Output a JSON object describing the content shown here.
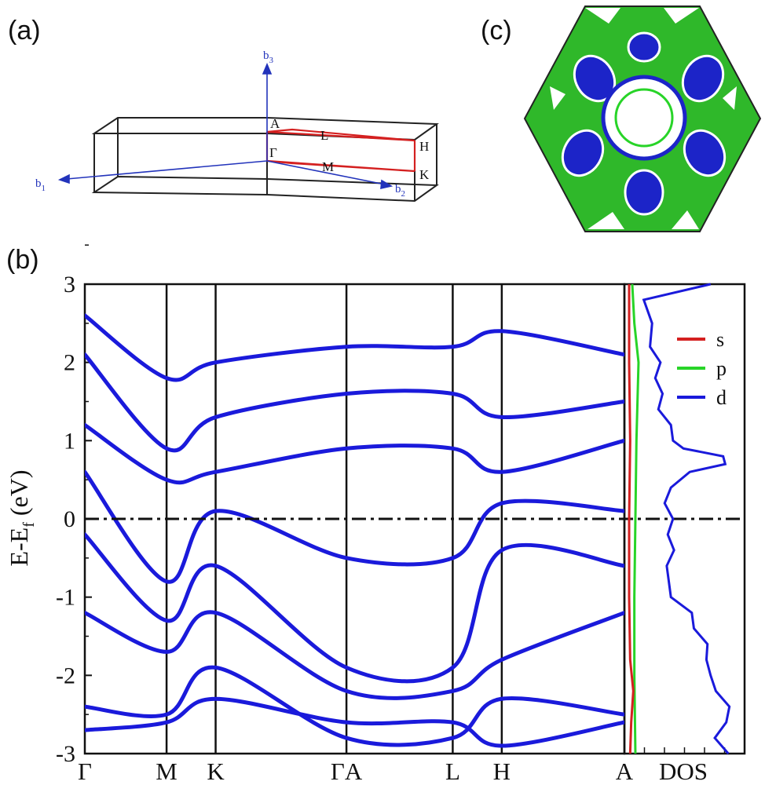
{
  "panels": {
    "a": "(a)",
    "b": "(b)",
    "c": "(c)"
  },
  "brillouin_zone": {
    "reciprocal_vectors": [
      "b",
      "b",
      "b"
    ],
    "reciprocal_subscripts": [
      "1",
      "2",
      "3"
    ],
    "points": [
      "A",
      "L",
      "H",
      "Γ",
      "M",
      "K"
    ]
  },
  "chart_data": {
    "type": "line",
    "ylabel_main": "E-E",
    "ylabel_sub": "f",
    "ylabel_unit": " (eV)",
    "ylim": [
      -3,
      3
    ],
    "yticks": [
      "-3",
      "-2",
      "-1",
      "0",
      "1",
      "2",
      "3"
    ],
    "ytick_values": [
      -3,
      -2,
      -1,
      0,
      1,
      2,
      3
    ],
    "fermi_level": 0,
    "kpath_labels": [
      "Γ",
      "M",
      "K",
      "ΓA",
      "L",
      "H",
      "A"
    ],
    "kpath_positions": [
      0,
      1,
      1.6,
      3.2,
      4.5,
      5.1,
      6.6
    ],
    "dos_label": "DOS",
    "legend": {
      "position": "top-right",
      "entries": [
        "s",
        "p",
        "d"
      ]
    },
    "colors": {
      "s": "#d42020",
      "p": "#28d428",
      "d": "#1a1adb"
    },
    "bands": [
      [
        -2.7,
        -2.6,
        -2.3,
        -2.6,
        -2.6,
        -2.9,
        -2.6
      ],
      [
        -2.4,
        -2.5,
        -1.9,
        -2.8,
        -2.8,
        -2.3,
        -2.5
      ],
      [
        -1.2,
        -1.7,
        -1.2,
        -2.2,
        -2.2,
        -1.8,
        -1.2
      ],
      [
        -0.2,
        -1.3,
        -0.6,
        -1.9,
        -1.9,
        -0.4,
        -0.6
      ],
      [
        0.6,
        -0.8,
        0.1,
        -0.5,
        -0.5,
        0.2,
        0.1
      ],
      [
        1.2,
        0.5,
        0.6,
        0.9,
        0.9,
        0.6,
        1.0
      ],
      [
        2.1,
        0.9,
        1.3,
        1.6,
        1.6,
        1.3,
        1.5
      ],
      [
        2.6,
        1.8,
        2.0,
        2.2,
        2.2,
        2.4,
        2.1
      ]
    ],
    "pdos_s": [
      [
        -3.0,
        0.01
      ],
      [
        -2.6,
        0.02
      ],
      [
        -2.2,
        0.04
      ],
      [
        -1.8,
        0.01
      ],
      [
        -1.0,
        0.0
      ],
      [
        0.0,
        0.0
      ],
      [
        1.0,
        0.01
      ],
      [
        2.0,
        0.0
      ],
      [
        3.0,
        0.0
      ]
    ],
    "pdos_p": [
      [
        -3.0,
        0.06
      ],
      [
        -2.0,
        0.05
      ],
      [
        -1.0,
        0.05
      ],
      [
        0.0,
        0.06
      ],
      [
        1.0,
        0.07
      ],
      [
        2.0,
        0.09
      ],
      [
        2.5,
        0.05
      ],
      [
        3.0,
        0.03
      ]
    ],
    "pdos_d": [
      [
        -3.0,
        0.95
      ],
      [
        -2.8,
        0.82
      ],
      [
        -2.6,
        0.93
      ],
      [
        -2.4,
        0.96
      ],
      [
        -2.2,
        0.83
      ],
      [
        -2.0,
        0.78
      ],
      [
        -1.8,
        0.74
      ],
      [
        -1.6,
        0.75
      ],
      [
        -1.4,
        0.62
      ],
      [
        -1.2,
        0.6
      ],
      [
        -1.0,
        0.4
      ],
      [
        -0.8,
        0.38
      ],
      [
        -0.6,
        0.36
      ],
      [
        -0.4,
        0.43
      ],
      [
        -0.2,
        0.37
      ],
      [
        0.0,
        0.42
      ],
      [
        0.2,
        0.34
      ],
      [
        0.4,
        0.4
      ],
      [
        0.6,
        0.58
      ],
      [
        0.7,
        0.92
      ],
      [
        0.8,
        0.9
      ],
      [
        0.9,
        0.52
      ],
      [
        1.0,
        0.42
      ],
      [
        1.2,
        0.4
      ],
      [
        1.4,
        0.28
      ],
      [
        1.6,
        0.32
      ],
      [
        1.8,
        0.25
      ],
      [
        2.0,
        0.3
      ],
      [
        2.2,
        0.2
      ],
      [
        2.5,
        0.22
      ],
      [
        2.8,
        0.14
      ],
      [
        3.0,
        0.78
      ]
    ]
  }
}
